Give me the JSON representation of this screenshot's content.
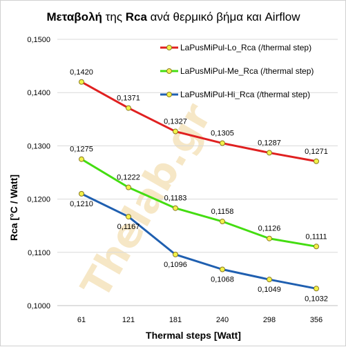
{
  "chart_data": {
    "type": "line",
    "title": {
      "bold1": "Μεταβολή",
      "normal1": " της ",
      "bold2": "Rca",
      "normal2": " ανά θερμικό βήμα και  Airflow"
    },
    "xlabel": "Thermal steps  [Watt]",
    "ylabel": "Rca   [°C / Watt]",
    "categories": [
      "61",
      "121",
      "181",
      "240",
      "298",
      "356"
    ],
    "ylim": [
      0.1,
      0.15
    ],
    "yticks": [
      0.1,
      0.11,
      0.12,
      0.13,
      0.14,
      0.15
    ],
    "ytick_labels": [
      "0,1000",
      "0,1100",
      "0,1200",
      "0,1300",
      "0,1400",
      "0,1500"
    ],
    "grid": true,
    "legend_position": "top-right",
    "watermark": "Thelab.gr",
    "series": [
      {
        "name": "LaPusMiPul-Lo_Rca (/thermal step)",
        "color": "#e02020",
        "values": [
          0.142,
          0.1371,
          0.1327,
          0.1305,
          0.1287,
          0.1271
        ],
        "labels": [
          "0,1420",
          "0,1371",
          "0,1327",
          "0,1305",
          "0,1287",
          "0,1271"
        ],
        "label_pos": "above"
      },
      {
        "name": "LaPusMiPul-Me_Rca (/thermal step)",
        "color": "#44dd11",
        "values": [
          0.1275,
          0.1222,
          0.1183,
          0.1158,
          0.1126,
          0.1111
        ],
        "labels": [
          "0,1275",
          "0,1222",
          "0,1183",
          "0,1158",
          "0,1126",
          "0,1111"
        ],
        "label_pos": "above"
      },
      {
        "name": "LaPusMiPul-Hi_Rca (/thermal step)",
        "color": "#1f5fb0",
        "values": [
          0.121,
          0.1167,
          0.1096,
          0.1068,
          0.1049,
          0.1032
        ],
        "labels": [
          "0,1210",
          "0,1167",
          "0,1096",
          "0,1068",
          "0,1049",
          "0,1032"
        ],
        "label_pos": "below"
      }
    ],
    "marker_color": "#f2f24a"
  }
}
